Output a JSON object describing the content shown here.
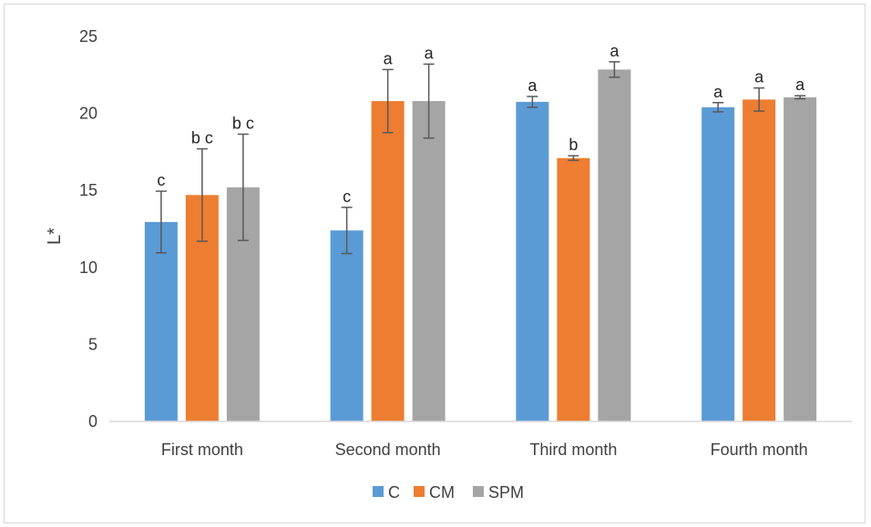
{
  "chart_data": {
    "type": "bar",
    "title": "",
    "xlabel": "",
    "ylabel": "L*",
    "ylim": [
      0,
      25
    ],
    "yticks": [
      0,
      5,
      10,
      15,
      20,
      25
    ],
    "grid": false,
    "legend_position": "bottom",
    "categories": [
      "First month",
      "Second month",
      "Third month",
      "Fourth month"
    ],
    "series": [
      {
        "name": "C",
        "color": "#5B9BD5",
        "values": [
          12.95,
          12.4,
          20.75,
          20.4
        ],
        "errors": [
          2.0,
          1.5,
          0.35,
          0.3
        ],
        "labels": [
          "c",
          "c",
          "a",
          "a"
        ]
      },
      {
        "name": "CM",
        "color": "#ED7D31",
        "values": [
          14.7,
          20.8,
          17.1,
          20.9
        ],
        "errors": [
          3.0,
          2.05,
          0.15,
          0.75
        ],
        "labels": [
          "b c",
          "a",
          "b",
          "a"
        ]
      },
      {
        "name": "SPM",
        "color": "#A5A5A5",
        "values": [
          15.2,
          20.8,
          22.85,
          21.05
        ],
        "errors": [
          3.45,
          2.4,
          0.5,
          0.1
        ],
        "labels": [
          "b c",
          "a",
          "a",
          "a"
        ]
      }
    ]
  }
}
